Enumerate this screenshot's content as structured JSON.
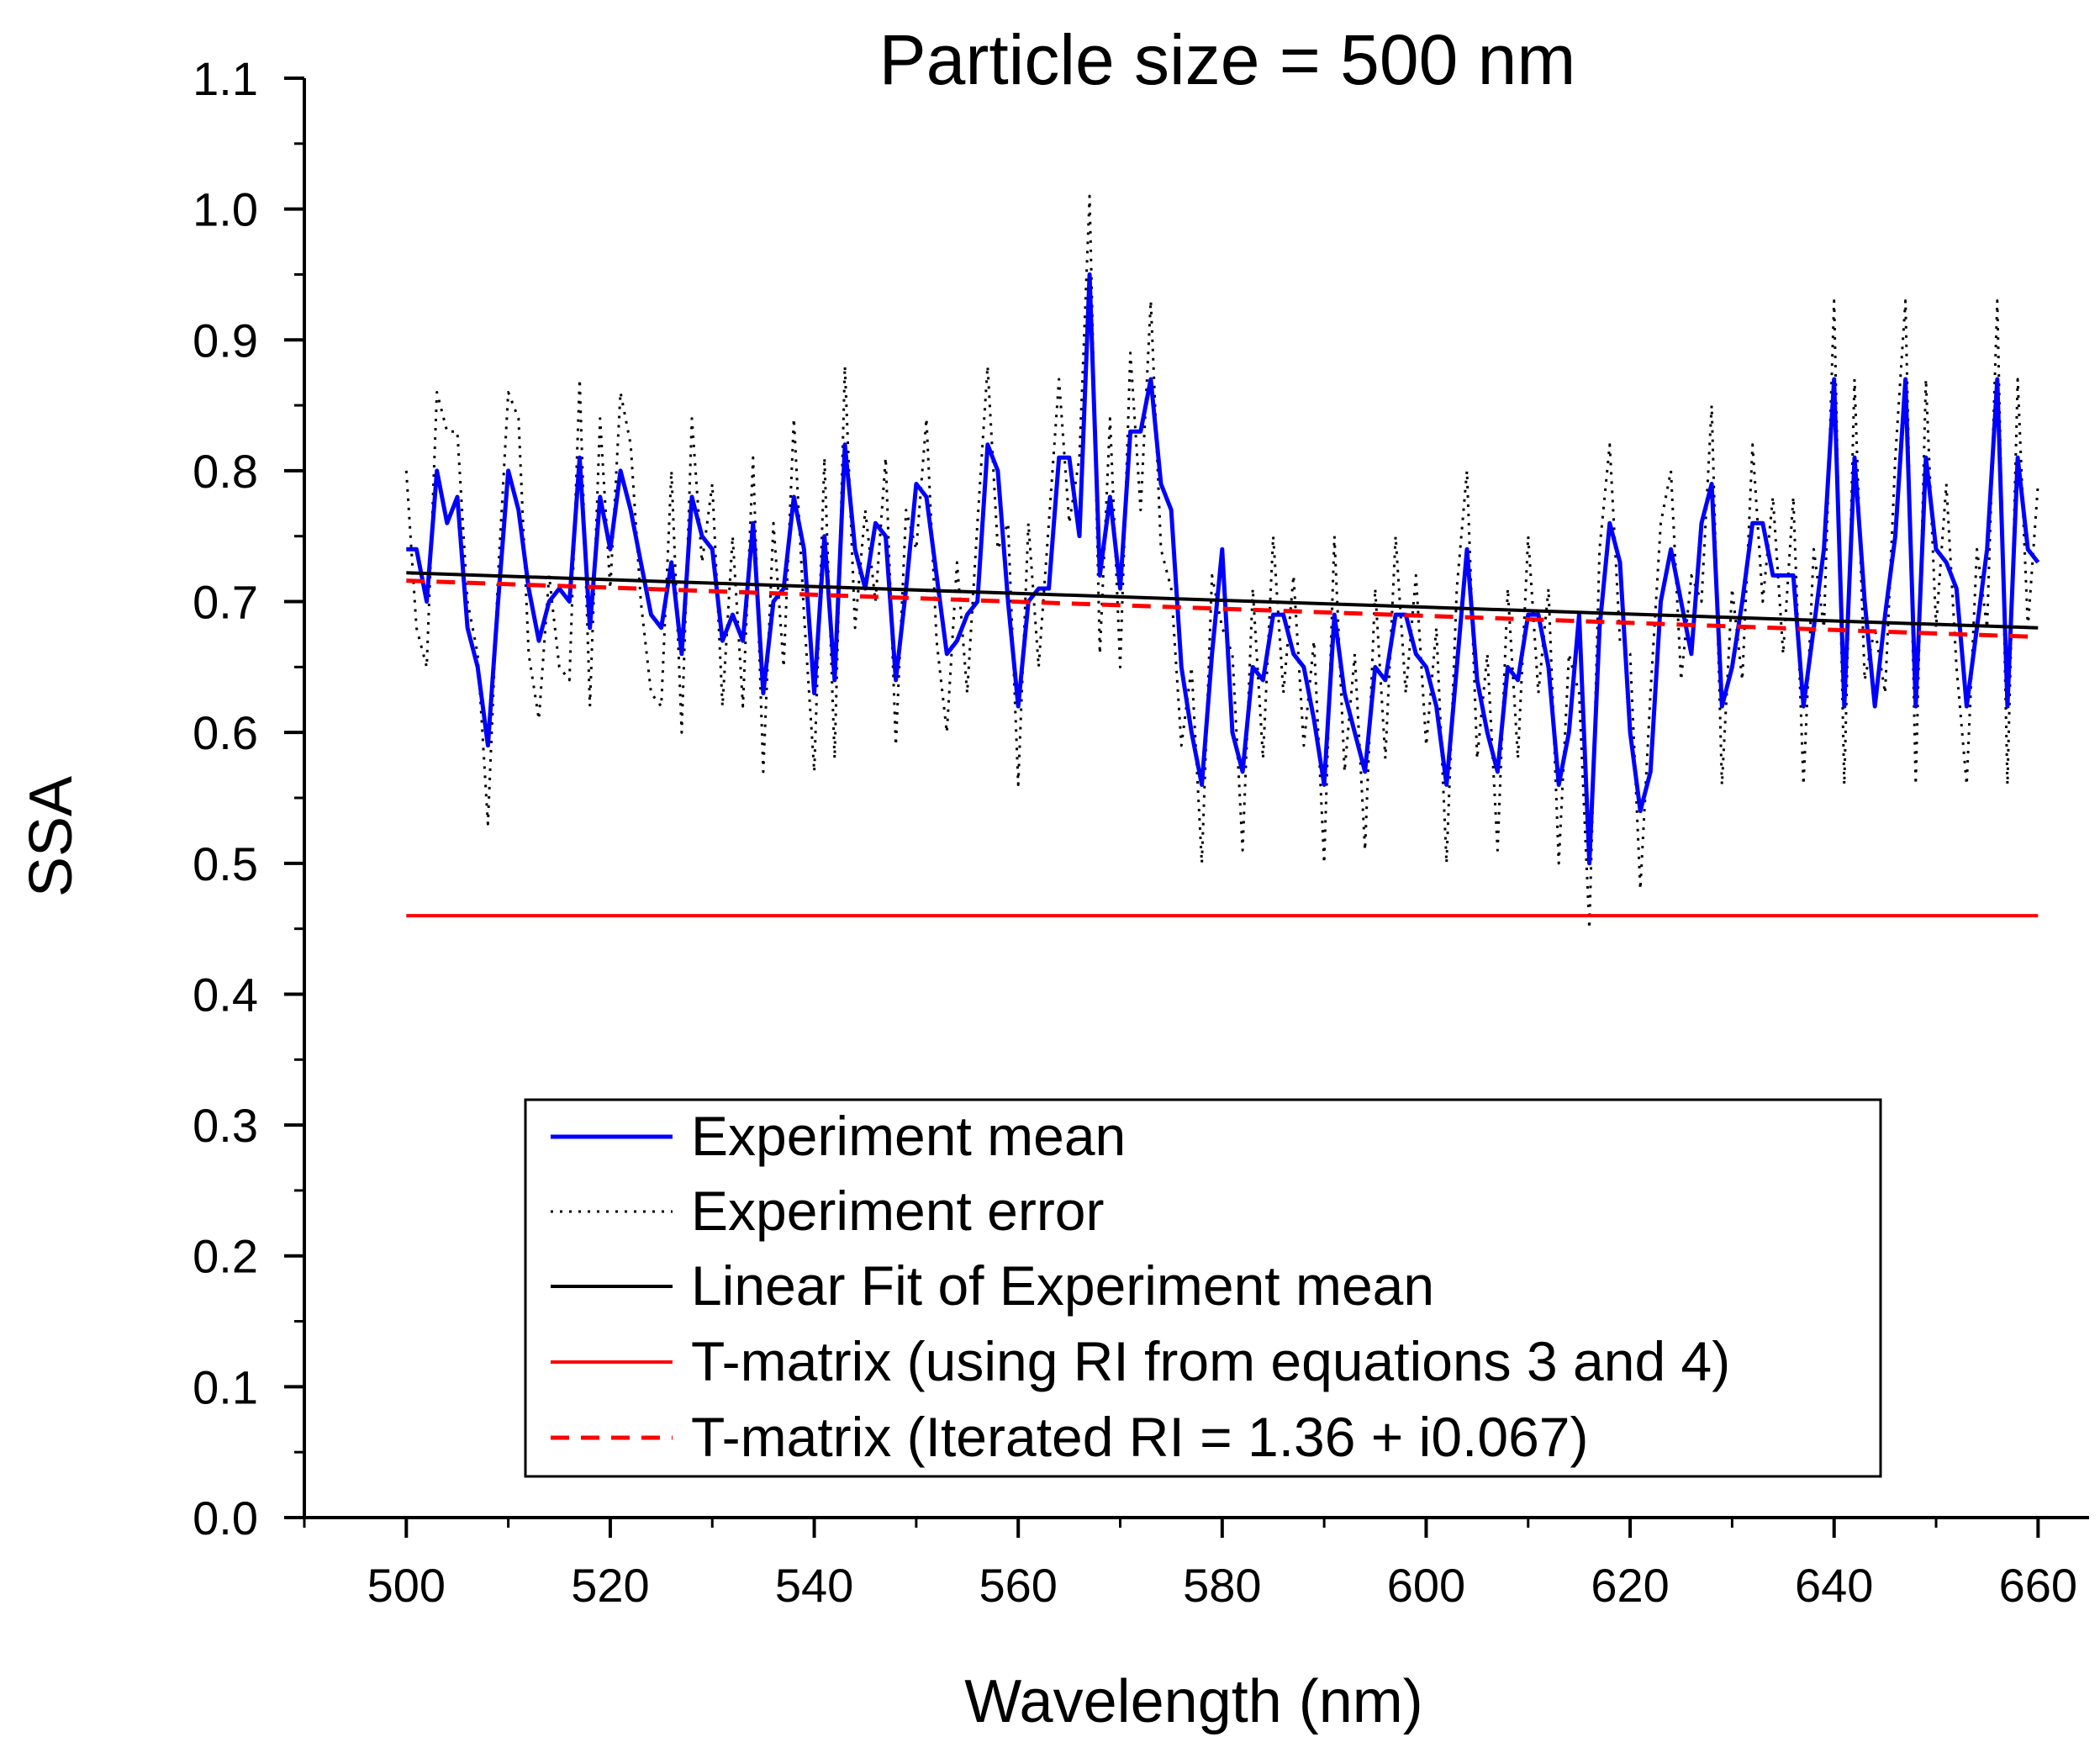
{
  "chart_data": {
    "type": "line",
    "title": "Particle size = 500 nm",
    "xlabel": "Wavelength (nm)",
    "ylabel": "SSA",
    "xlim": [
      490,
      665
    ],
    "ylim": [
      0.0,
      1.1
    ],
    "x_ticks": [
      500,
      520,
      540,
      560,
      580,
      600,
      620,
      640,
      660
    ],
    "x_tick_labels": [
      "500",
      "520",
      "540",
      "560",
      "580",
      "600",
      "620",
      "640",
      "660"
    ],
    "y_ticks": [
      0.0,
      0.1,
      0.2,
      0.3,
      0.4,
      0.5,
      0.6,
      0.7,
      0.8,
      0.9,
      1.0,
      1.1
    ],
    "y_tick_labels": [
      "0.0",
      "0.1",
      "0.2",
      "0.3",
      "0.4",
      "0.5",
      "0.6",
      "0.7",
      "0.8",
      "0.9",
      "1.0",
      "1.1"
    ],
    "grid": false,
    "legend_position": "bottom-center",
    "series": [
      {
        "name": "Experiment mean",
        "style": "solid",
        "color": "#0000ff",
        "x": [
          500,
          501,
          502,
          503,
          504,
          505,
          506,
          507,
          508,
          509,
          510,
          511,
          512,
          513,
          514,
          515,
          516,
          517,
          518,
          519,
          520,
          521,
          522,
          523,
          524,
          525,
          526,
          527,
          528,
          529,
          530,
          531,
          532,
          533,
          534,
          535,
          536,
          537,
          538,
          539,
          540,
          541,
          542,
          543,
          544,
          545,
          546,
          547,
          548,
          549,
          550,
          551,
          552,
          553,
          554,
          555,
          556,
          557,
          558,
          559,
          560,
          561,
          562,
          563,
          564,
          565,
          566,
          567,
          568,
          569,
          570,
          571,
          572,
          573,
          574,
          575,
          576,
          577,
          578,
          579,
          580,
          581,
          582,
          583,
          584,
          585,
          586,
          587,
          588,
          589,
          590,
          591,
          592,
          593,
          594,
          595,
          596,
          597,
          598,
          599,
          600,
          601,
          602,
          603,
          604,
          605,
          606,
          607,
          608,
          609,
          610,
          611,
          612,
          613,
          614,
          615,
          616,
          617,
          618,
          619,
          620,
          621,
          622,
          623,
          624,
          625,
          626,
          627,
          628,
          629,
          630,
          631,
          632,
          633,
          634,
          635,
          636,
          637,
          638,
          639,
          640,
          641,
          642,
          643,
          644,
          645,
          646,
          647,
          648,
          649,
          650,
          651,
          652,
          653,
          654,
          655,
          656,
          657,
          658,
          659,
          660
        ],
        "y": [
          0.74,
          0.74,
          0.7,
          0.8,
          0.76,
          0.78,
          0.68,
          0.65,
          0.59,
          0.7,
          0.8,
          0.77,
          0.71,
          0.67,
          0.7,
          0.71,
          0.7,
          0.81,
          0.68,
          0.78,
          0.74,
          0.8,
          0.77,
          0.73,
          0.69,
          0.68,
          0.73,
          0.66,
          0.78,
          0.75,
          0.74,
          0.67,
          0.69,
          0.67,
          0.76,
          0.63,
          0.7,
          0.71,
          0.78,
          0.74,
          0.63,
          0.75,
          0.64,
          0.82,
          0.74,
          0.71,
          0.76,
          0.75,
          0.64,
          0.71,
          0.79,
          0.78,
          0.72,
          0.66,
          0.67,
          0.69,
          0.7,
          0.82,
          0.8,
          0.7,
          0.62,
          0.7,
          0.71,
          0.71,
          0.81,
          0.81,
          0.75,
          0.95,
          0.72,
          0.78,
          0.71,
          0.83,
          0.83,
          0.87,
          0.79,
          0.77,
          0.65,
          0.6,
          0.56,
          0.66,
          0.74,
          0.6,
          0.57,
          0.65,
          0.64,
          0.69,
          0.69,
          0.66,
          0.65,
          0.61,
          0.56,
          0.69,
          0.63,
          0.6,
          0.57,
          0.65,
          0.64,
          0.69,
          0.69,
          0.66,
          0.65,
          0.62,
          0.56,
          0.65,
          0.74,
          0.64,
          0.6,
          0.57,
          0.65,
          0.64,
          0.69,
          0.69,
          0.65,
          0.56,
          0.6,
          0.69,
          0.5,
          0.68,
          0.76,
          0.73,
          0.6,
          0.54,
          0.57,
          0.7,
          0.74,
          0.7,
          0.66,
          0.76,
          0.79,
          0.62,
          0.65,
          0.7,
          0.76,
          0.76,
          0.72,
          0.72,
          0.72,
          0.62,
          0.68,
          0.74,
          0.87,
          0.62,
          0.81,
          0.7,
          0.62,
          0.69,
          0.75,
          0.87,
          0.62,
          0.81,
          0.74,
          0.73,
          0.71,
          0.62,
          0.68,
          0.74,
          0.87,
          0.62,
          0.81,
          0.74,
          0.73
        ]
      },
      {
        "name": "Experiment error",
        "style": "dotted",
        "color": "#000000",
        "x": [
          500,
          501,
          502,
          503,
          504,
          505,
          506,
          507,
          508,
          509,
          510,
          511,
          512,
          513,
          514,
          515,
          516,
          517,
          518,
          519,
          520,
          521,
          522,
          523,
          524,
          525,
          526,
          527,
          528,
          529,
          530,
          531,
          532,
          533,
          534,
          535,
          536,
          537,
          538,
          539,
          540,
          541,
          542,
          543,
          544,
          545,
          546,
          547,
          548,
          549,
          550,
          551,
          552,
          553,
          554,
          555,
          556,
          557,
          558,
          559,
          560,
          561,
          562,
          563,
          564,
          565,
          566,
          567,
          568,
          569,
          570,
          571,
          572,
          573,
          574,
          575,
          576,
          577,
          578,
          579,
          580,
          581,
          582,
          583,
          584,
          585,
          586,
          587,
          588,
          589,
          590,
          591,
          592,
          593,
          594,
          595,
          596,
          597,
          598,
          599,
          600,
          601,
          602,
          603,
          604,
          605,
          606,
          607,
          608,
          609,
          610,
          611,
          612,
          613,
          614,
          615,
          616,
          617,
          618,
          619,
          620,
          621,
          622,
          623,
          624,
          625,
          626,
          627,
          628,
          629,
          630,
          631,
          632,
          633,
          634,
          635,
          636,
          637,
          638,
          639,
          640,
          641,
          642,
          643,
          644,
          645,
          646,
          647,
          648,
          649,
          650,
          651,
          652,
          653,
          654,
          655,
          656,
          657,
          658,
          659,
          660
        ],
        "y": [
          0.8,
          0.68,
          0.65,
          0.86,
          0.83,
          0.83,
          0.7,
          0.66,
          0.53,
          0.72,
          0.86,
          0.84,
          0.66,
          0.61,
          0.72,
          0.65,
          0.64,
          0.87,
          0.62,
          0.84,
          0.71,
          0.86,
          0.82,
          0.7,
          0.63,
          0.62,
          0.8,
          0.6,
          0.84,
          0.73,
          0.79,
          0.62,
          0.75,
          0.62,
          0.81,
          0.57,
          0.76,
          0.65,
          0.84,
          0.69,
          0.57,
          0.81,
          0.58,
          0.88,
          0.68,
          0.77,
          0.7,
          0.81,
          0.59,
          0.77,
          0.74,
          0.84,
          0.67,
          0.6,
          0.73,
          0.63,
          0.76,
          0.88,
          0.74,
          0.76,
          0.56,
          0.76,
          0.65,
          0.76,
          0.87,
          0.76,
          0.81,
          1.01,
          0.66,
          0.84,
          0.65,
          0.89,
          0.77,
          0.93,
          0.74,
          0.71,
          0.59,
          0.65,
          0.5,
          0.72,
          0.68,
          0.66,
          0.51,
          0.71,
          0.58,
          0.75,
          0.63,
          0.72,
          0.59,
          0.67,
          0.5,
          0.75,
          0.57,
          0.66,
          0.51,
          0.71,
          0.58,
          0.75,
          0.63,
          0.72,
          0.59,
          0.68,
          0.5,
          0.71,
          0.8,
          0.58,
          0.66,
          0.51,
          0.71,
          0.58,
          0.75,
          0.63,
          0.71,
          0.5,
          0.66,
          0.63,
          0.45,
          0.74,
          0.82,
          0.67,
          0.66,
          0.48,
          0.63,
          0.76,
          0.8,
          0.64,
          0.72,
          0.7,
          0.85,
          0.56,
          0.71,
          0.64,
          0.82,
          0.7,
          0.78,
          0.66,
          0.78,
          0.56,
          0.74,
          0.68,
          0.93,
          0.56,
          0.87,
          0.64,
          0.68,
          0.63,
          0.81,
          0.93,
          0.56,
          0.87,
          0.68,
          0.79,
          0.65,
          0.56,
          0.74,
          0.68,
          0.93,
          0.56,
          0.87,
          0.68,
          0.79
        ]
      },
      {
        "name": "Linear Fit of Experiment mean",
        "style": "solid",
        "color": "#000000",
        "x": [
          500,
          660
        ],
        "y": [
          0.722,
          0.68
        ]
      },
      {
        "name": "T-matrix (using RI from equations 3 and 4)",
        "style": "solid",
        "color": "#ff0000",
        "x": [
          500,
          660
        ],
        "y": [
          0.46,
          0.46
        ]
      },
      {
        "name": "T-matrix (Iterated RI = 1.36 + i0.067)",
        "style": "dashed",
        "color": "#ff0000",
        "x": [
          500,
          660
        ],
        "y": [
          0.716,
          0.673
        ]
      }
    ]
  }
}
